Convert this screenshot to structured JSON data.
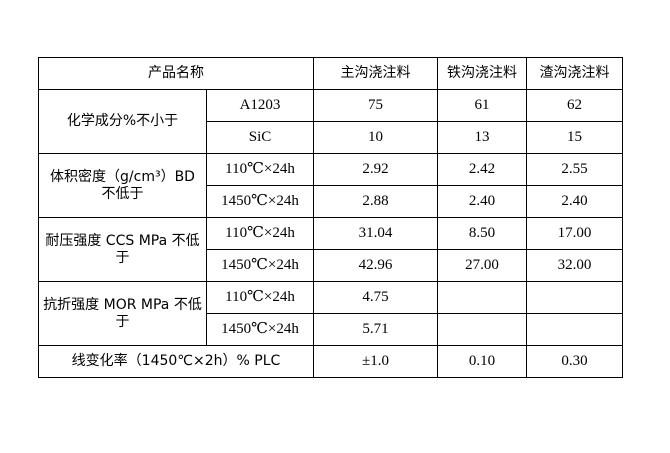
{
  "header": {
    "product_name": "产品名称",
    "col1": "主沟浇注料",
    "col2": "铁沟浇注料",
    "col3": "渣沟浇注料"
  },
  "rows": [
    {
      "label": "化学成分%不小于",
      "subs": [
        {
          "cond": "A1203",
          "v": [
            "75",
            "61",
            "62"
          ]
        },
        {
          "cond": "SiC",
          "v": [
            "10",
            "13",
            "15"
          ]
        }
      ]
    },
    {
      "label": "体积密度（g/cm³）BD 不低于",
      "subs": [
        {
          "cond": "110℃×24h",
          "v": [
            "2.92",
            "2.42",
            "2.55"
          ]
        },
        {
          "cond": "1450℃×24h",
          "v": [
            "2.88",
            "2.40",
            "2.40"
          ]
        }
      ]
    },
    {
      "label": "耐压强度 CCS MPa 不低于",
      "subs": [
        {
          "cond": "110℃×24h",
          "v": [
            "31.04",
            "8.50",
            "17.00"
          ]
        },
        {
          "cond": "1450℃×24h",
          "v": [
            "42.96",
            "27.00",
            "32.00"
          ]
        }
      ]
    },
    {
      "label": "抗折强度 MOR MPa 不低于",
      "subs": [
        {
          "cond": "110℃×24h",
          "v": [
            "4.75",
            "",
            ""
          ]
        },
        {
          "cond": "1450℃×24h",
          "v": [
            "5.71",
            "",
            ""
          ]
        }
      ]
    }
  ],
  "plc": {
    "label": "线变化率（1450℃×2h）% PLC",
    "v": [
      "±1.0",
      "0.10",
      "0.30"
    ]
  }
}
